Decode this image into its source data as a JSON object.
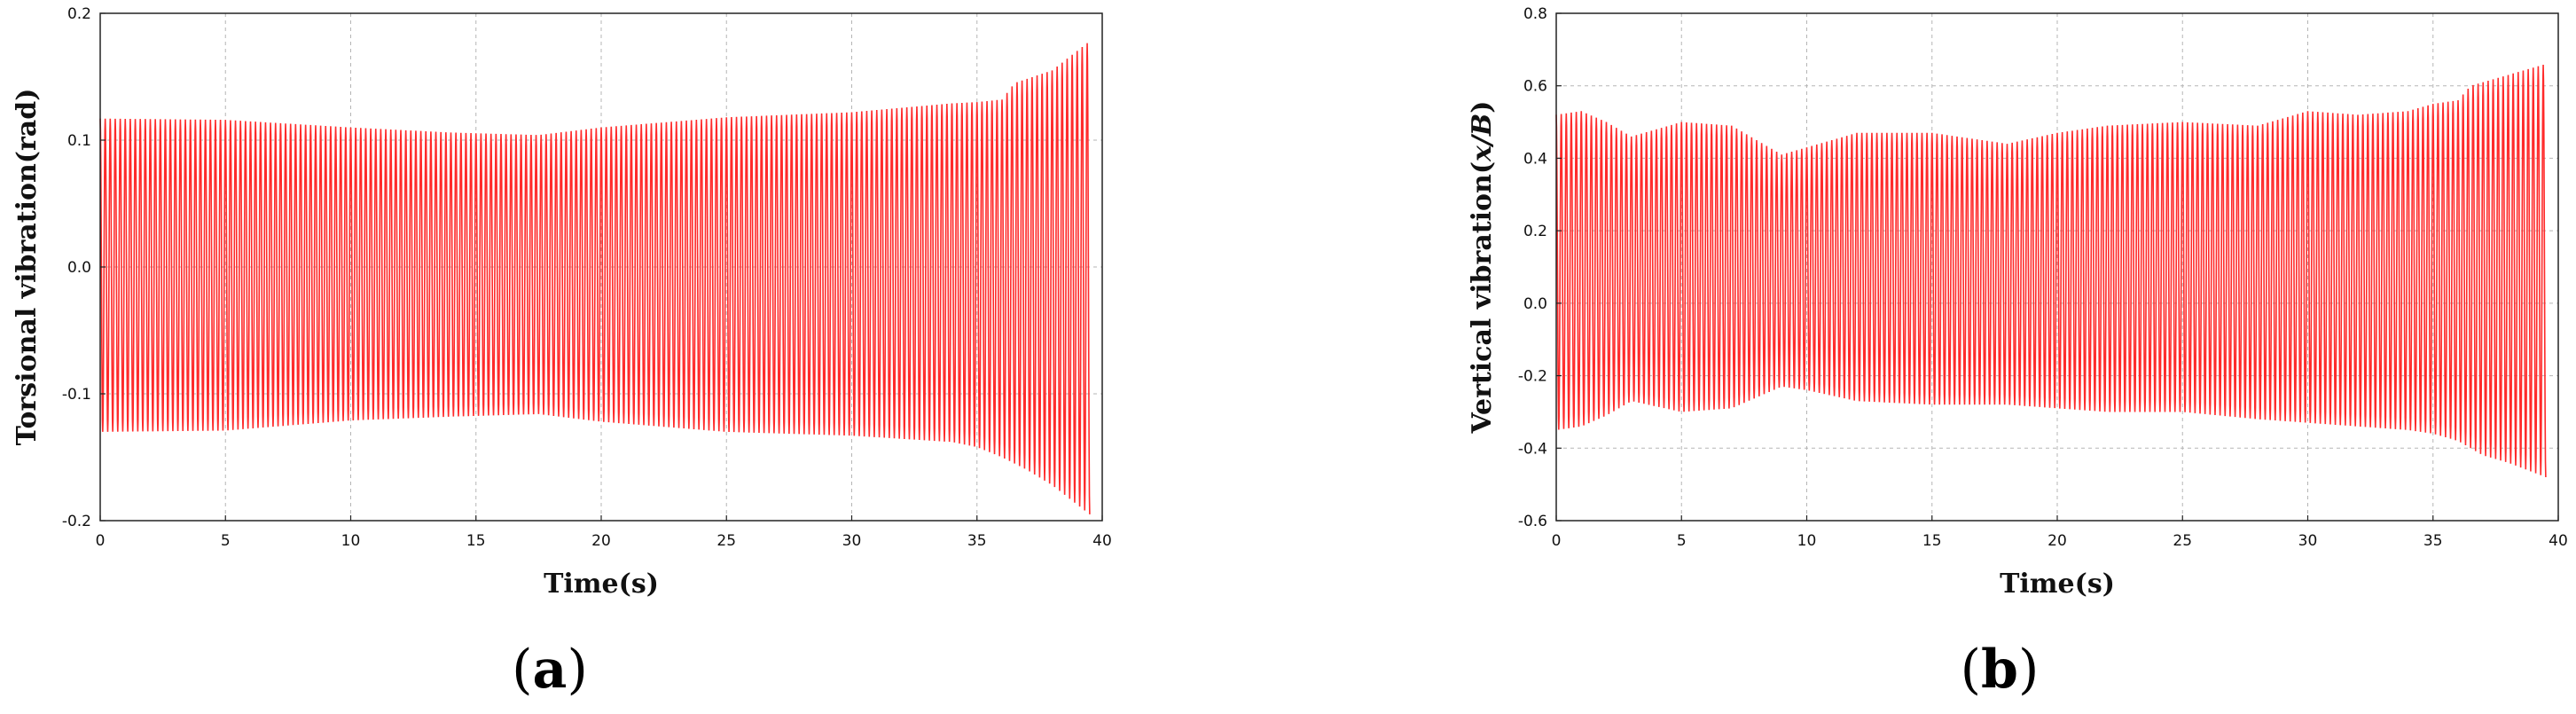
{
  "figure": {
    "panels": [
      {
        "id": "a",
        "letter_open": "(",
        "letter": "a",
        "letter_close": ")"
      },
      {
        "id": "b",
        "letter_open": "(",
        "letter": "b",
        "letter_close": ")"
      }
    ]
  },
  "chart_data": [
    {
      "type": "line",
      "title": "",
      "xlabel": "Time(s)",
      "ylabel": "Torsional vibration(rad)",
      "xlim": [
        0,
        40
      ],
      "ylim": [
        -0.2,
        0.2
      ],
      "xticks": [
        0,
        5,
        10,
        15,
        20,
        25,
        30,
        35,
        40
      ],
      "xtick_labels": [
        "0",
        "5",
        "10",
        "15",
        "20",
        "25",
        "30",
        "35",
        "40"
      ],
      "yticks": [
        -0.2,
        -0.1,
        0.0,
        0.1,
        0.2
      ],
      "ytick_labels": [
        "-0.2",
        "-0.1",
        "0.0",
        "0.1",
        "0.2"
      ],
      "grid": true,
      "line_color": "#ff2a2a",
      "series": [
        {
          "oscillation_frequency_hz": 5,
          "t_end": 39.5,
          "upper_envelope": {
            "t": [
              0,
              5,
              10,
              14,
              17.5,
              20,
              25,
              30,
              34,
              35,
              36,
              36.5,
              38,
              39.5
            ],
            "v": [
              0.117,
              0.116,
              0.11,
              0.106,
              0.104,
              0.11,
              0.118,
              0.122,
              0.129,
              0.13,
              0.132,
              0.145,
              0.155,
              0.178
            ]
          },
          "lower_envelope": {
            "t": [
              0,
              5,
              10,
              14,
              17.5,
              20,
              25,
              30,
              34,
              35,
              36,
              37,
              38,
              39.5
            ],
            "v": [
              -0.13,
              -0.129,
              -0.121,
              -0.118,
              -0.116,
              -0.122,
              -0.13,
              -0.133,
              -0.138,
              -0.142,
              -0.15,
              -0.16,
              -0.172,
              -0.195
            ]
          }
        }
      ]
    },
    {
      "type": "line",
      "title": "",
      "xlabel": "Time(s)",
      "ylabel_plain": "Vertical vibration(",
      "ylabel_italic": "x/B",
      "ylabel_close": ")",
      "xlim": [
        0,
        40
      ],
      "ylim": [
        -0.6,
        0.8
      ],
      "xticks": [
        0,
        5,
        10,
        15,
        20,
        25,
        30,
        35,
        40
      ],
      "xtick_labels": [
        "0",
        "5",
        "10",
        "15",
        "20",
        "25",
        "30",
        "35",
        "40"
      ],
      "yticks": [
        -0.6,
        -0.4,
        -0.2,
        0.0,
        0.2,
        0.4,
        0.6,
        0.8
      ],
      "ytick_labels": [
        "-0.6",
        "-0.4",
        "-0.2",
        "0.0",
        "0.2",
        "0.4",
        "0.6",
        "0.8"
      ],
      "grid": true,
      "line_color": "#ff2a2a",
      "series": [
        {
          "oscillation_frequency_hz": 5,
          "t_end": 39.5,
          "upper_envelope": {
            "t": [
              0,
              1,
              2,
              3,
              5,
              7,
              8,
              9,
              10,
              12,
              15,
              18,
              20,
              22,
              25,
              28,
              30,
              32,
              34,
              35,
              36,
              36.5,
              38,
              39.5
            ],
            "v": [
              0.52,
              0.53,
              0.5,
              0.46,
              0.5,
              0.49,
              0.45,
              0.41,
              0.43,
              0.47,
              0.47,
              0.44,
              0.47,
              0.49,
              0.5,
              0.49,
              0.53,
              0.52,
              0.53,
              0.55,
              0.56,
              0.6,
              0.63,
              0.66
            ]
          },
          "lower_envelope": {
            "t": [
              0,
              1,
              2,
              3,
              5,
              7,
              8,
              9,
              10,
              12,
              15,
              18,
              20,
              22,
              25,
              28,
              30,
              32,
              34,
              35,
              36,
              37,
              38,
              39.5
            ],
            "v": [
              -0.35,
              -0.34,
              -0.31,
              -0.27,
              -0.3,
              -0.29,
              -0.26,
              -0.23,
              -0.24,
              -0.27,
              -0.28,
              -0.28,
              -0.29,
              -0.3,
              -0.3,
              -0.32,
              -0.33,
              -0.34,
              -0.35,
              -0.36,
              -0.38,
              -0.42,
              -0.44,
              -0.48
            ]
          }
        }
      ]
    }
  ]
}
